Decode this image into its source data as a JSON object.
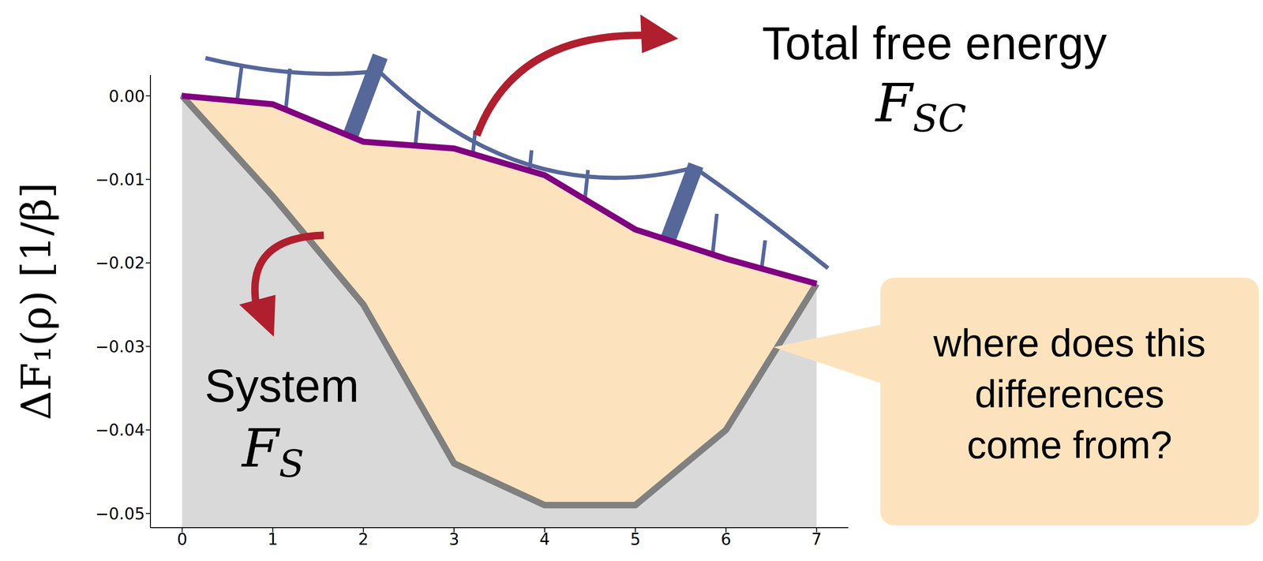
{
  "chart_data": {
    "type": "line",
    "y_label": "ΔF₁(ρ) [1/β]",
    "x": [
      0,
      1,
      2,
      3,
      4,
      5,
      6,
      7
    ],
    "series": [
      {
        "color": "#800080",
        "values": [
          0,
          -0.001,
          -0.0055,
          -0.0063,
          -0.0095,
          -0.016,
          -0.0195,
          -0.0225
        ]
      },
      {
        "color": "#808080",
        "values": [
          0,
          -0.012,
          -0.025,
          -0.044,
          -0.049,
          -0.049,
          -0.04,
          -0.0225
        ]
      }
    ],
    "xlim": [
      -0.35,
      7.35
    ],
    "xticks": [
      0,
      1,
      2,
      3,
      4,
      5,
      6,
      7
    ],
    "ylim": [
      -0.0517,
      0.0025
    ],
    "yticks": [
      {
        "value": 0,
        "label": "0.00"
      },
      {
        "value": -0.01,
        "label": "−0.01"
      },
      {
        "value": -0.02,
        "label": "−0.02"
      },
      {
        "value": -0.03,
        "label": "−0.03"
      },
      {
        "value": -0.04,
        "label": "−0.04"
      },
      {
        "value": -0.05,
        "label": "−0.05"
      }
    ],
    "annotations": [
      {
        "text": "Total free energy",
        "symbol": "F",
        "subscript": "SC"
      },
      {
        "text": "System",
        "symbol": "F",
        "subscript": "S"
      },
      {
        "text": "where does this differences come from?"
      }
    ]
  }
}
